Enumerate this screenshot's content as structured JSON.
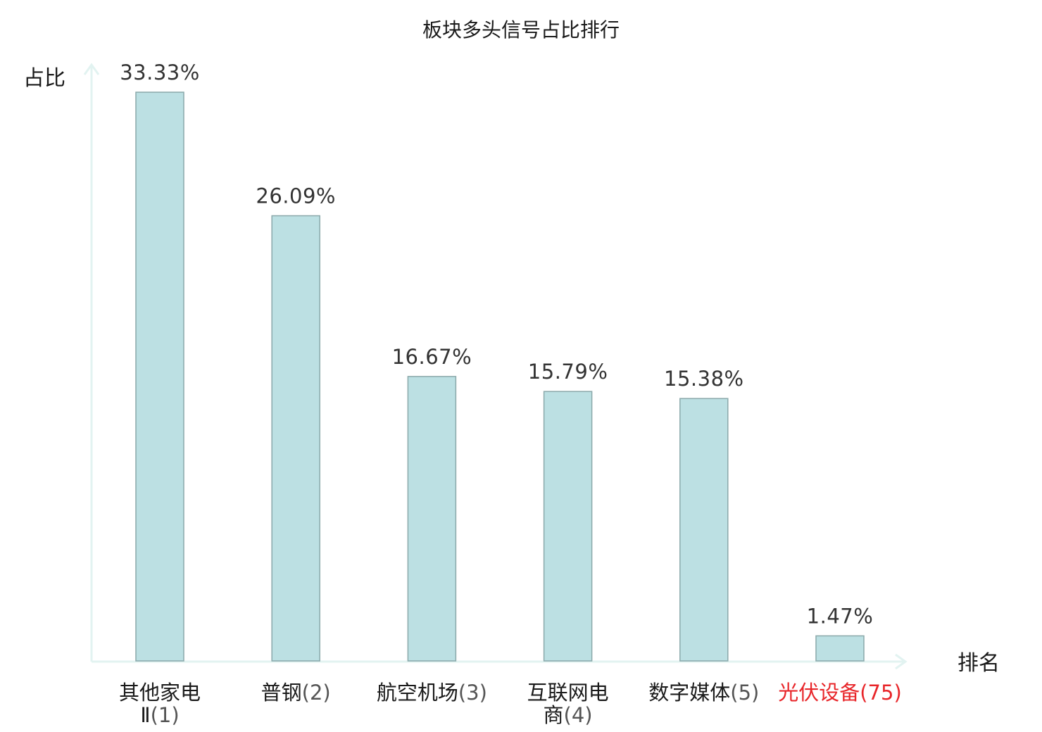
{
  "chart_data": {
    "type": "bar",
    "title": "板块多头信号占比排行",
    "xlabel": "排名",
    "ylabel": "占比",
    "ylim": [
      0,
      33.33
    ],
    "grid": false,
    "legend": "none",
    "categories": [
      {
        "name_lines": [
          "其他家电",
          "Ⅱ"
        ],
        "rank": "(1)",
        "highlight": false
      },
      {
        "name_lines": [
          "普钢"
        ],
        "rank": "(2)",
        "highlight": false
      },
      {
        "name_lines": [
          "航空机场"
        ],
        "rank": "(3)",
        "highlight": false
      },
      {
        "name_lines": [
          "互联网电",
          "商"
        ],
        "rank": "(4)",
        "highlight": false
      },
      {
        "name_lines": [
          "数字媒体"
        ],
        "rank": "(5)",
        "highlight": false
      },
      {
        "name_lines": [
          "光伏设备"
        ],
        "rank": "(75)",
        "highlight": true
      }
    ],
    "values": [
      33.33,
      26.09,
      16.67,
      15.79,
      15.38,
      1.47
    ],
    "value_labels": [
      "33.33%",
      "26.09%",
      "16.67%",
      "15.79%",
      "15.38%",
      "1.47%"
    ]
  },
  "colors": {
    "bar_fill": "#bce0e3",
    "bar_stroke": "#8aa8aa",
    "axis": "#e2f3f1",
    "highlight": "#e8262a"
  }
}
